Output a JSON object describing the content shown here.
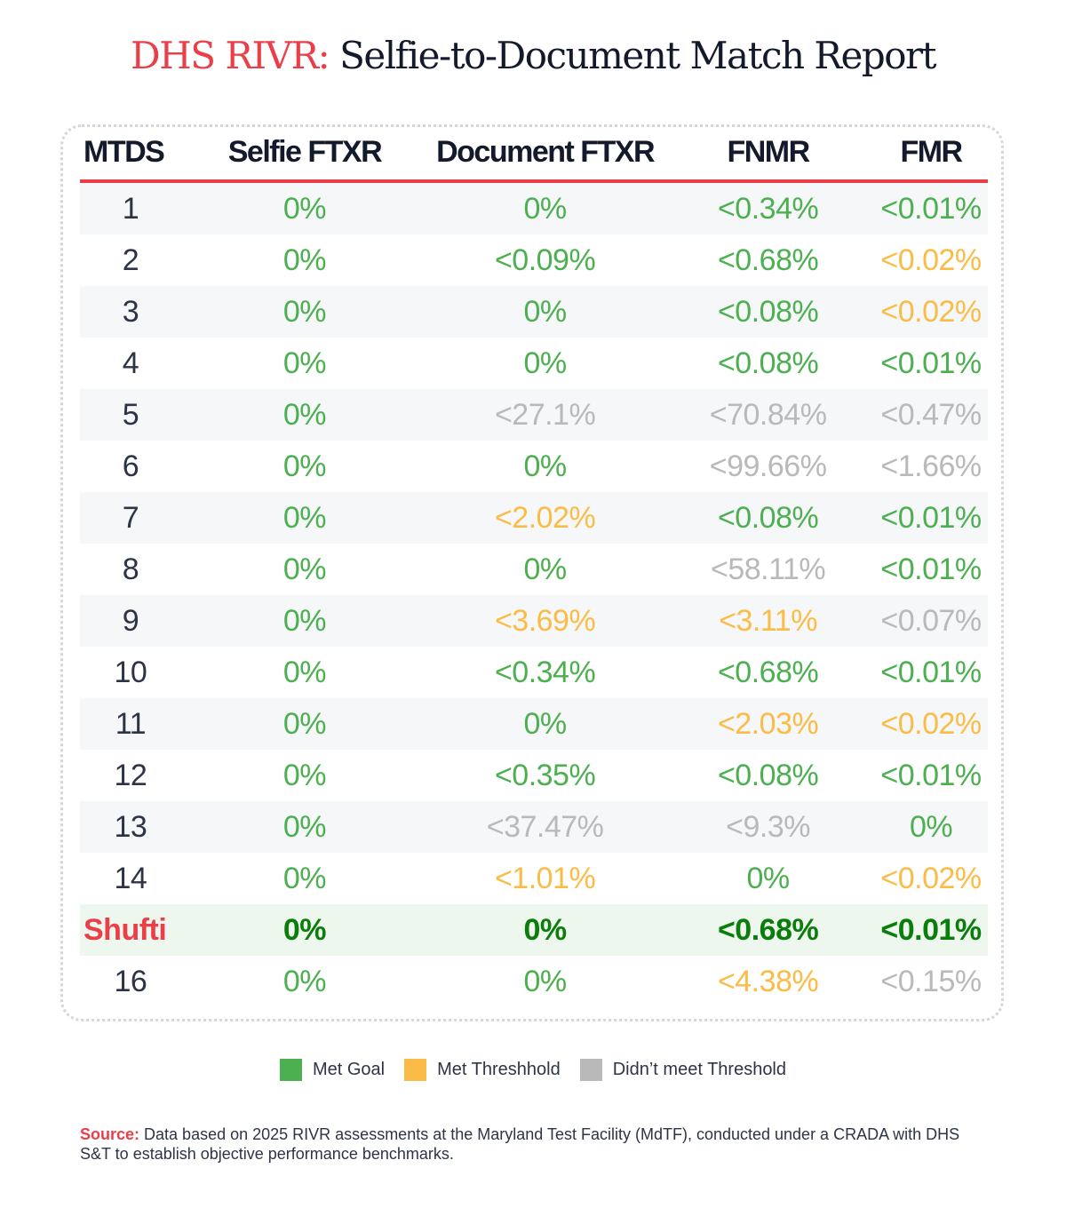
{
  "title": {
    "highlight": "DHS RIVR:",
    "rest": " Selfie-to-Document Match Report"
  },
  "colors": {
    "g": "#4caf50",
    "y": "#fbbc47",
    "x": "#b9b9b9",
    "accent": "#ea3f48",
    "hero_green": "#0b7d0b"
  },
  "chart_data": {
    "type": "table",
    "columns": [
      "MTDS",
      "Selfie FTXR",
      "Document FTXR",
      "FNMR",
      "FMR"
    ],
    "rows": [
      {
        "id": "1",
        "cells": [
          [
            "0%",
            "g"
          ],
          [
            "0%",
            "g"
          ],
          [
            "<0.34%",
            "g"
          ],
          [
            "<0.01%",
            "g"
          ]
        ]
      },
      {
        "id": "2",
        "cells": [
          [
            "0%",
            "g"
          ],
          [
            "<0.09%",
            "g"
          ],
          [
            "<0.68%",
            "g"
          ],
          [
            "<0.02%",
            "y"
          ]
        ]
      },
      {
        "id": "3",
        "cells": [
          [
            "0%",
            "g"
          ],
          [
            "0%",
            "g"
          ],
          [
            "<0.08%",
            "g"
          ],
          [
            "<0.02%",
            "y"
          ]
        ]
      },
      {
        "id": "4",
        "cells": [
          [
            "0%",
            "g"
          ],
          [
            "0%",
            "g"
          ],
          [
            "<0.08%",
            "g"
          ],
          [
            "<0.01%",
            "g"
          ]
        ]
      },
      {
        "id": "5",
        "cells": [
          [
            "0%",
            "g"
          ],
          [
            "<27.1%",
            "x"
          ],
          [
            "<70.84%",
            "x"
          ],
          [
            "<0.47%",
            "x"
          ]
        ]
      },
      {
        "id": "6",
        "cells": [
          [
            "0%",
            "g"
          ],
          [
            "0%",
            "g"
          ],
          [
            "<99.66%",
            "x"
          ],
          [
            "<1.66%",
            "x"
          ]
        ]
      },
      {
        "id": "7",
        "cells": [
          [
            "0%",
            "g"
          ],
          [
            "<2.02%",
            "y"
          ],
          [
            "<0.08%",
            "g"
          ],
          [
            "<0.01%",
            "g"
          ]
        ]
      },
      {
        "id": "8",
        "cells": [
          [
            "0%",
            "g"
          ],
          [
            "0%",
            "g"
          ],
          [
            "<58.11%",
            "x"
          ],
          [
            "<0.01%",
            "g"
          ]
        ]
      },
      {
        "id": "9",
        "cells": [
          [
            "0%",
            "g"
          ],
          [
            "<3.69%",
            "y"
          ],
          [
            "<3.11%",
            "y"
          ],
          [
            "<0.07%",
            "x"
          ]
        ]
      },
      {
        "id": "10",
        "cells": [
          [
            "0%",
            "g"
          ],
          [
            "<0.34%",
            "g"
          ],
          [
            "<0.68%",
            "g"
          ],
          [
            "<0.01%",
            "g"
          ]
        ]
      },
      {
        "id": "11",
        "cells": [
          [
            "0%",
            "g"
          ],
          [
            "0%",
            "g"
          ],
          [
            "<2.03%",
            "y"
          ],
          [
            "<0.02%",
            "y"
          ]
        ]
      },
      {
        "id": "12",
        "cells": [
          [
            "0%",
            "g"
          ],
          [
            "<0.35%",
            "g"
          ],
          [
            "<0.08%",
            "g"
          ],
          [
            "<0.01%",
            "g"
          ]
        ]
      },
      {
        "id": "13",
        "cells": [
          [
            "0%",
            "g"
          ],
          [
            "<37.47%",
            "x"
          ],
          [
            "<9.3%",
            "x"
          ],
          [
            "0%",
            "g"
          ]
        ]
      },
      {
        "id": "14",
        "cells": [
          [
            "0%",
            "g"
          ],
          [
            "<1.01%",
            "y"
          ],
          [
            "0%",
            "g"
          ],
          [
            "<0.02%",
            "y"
          ]
        ]
      },
      {
        "id": "Shufti",
        "highlight": true,
        "cells": [
          [
            "0%",
            "g"
          ],
          [
            "0%",
            "g"
          ],
          [
            "<0.68%",
            "g"
          ],
          [
            "<0.01%",
            "g"
          ]
        ]
      },
      {
        "id": "16",
        "cells": [
          [
            "0%",
            "g"
          ],
          [
            "0%",
            "g"
          ],
          [
            "<4.38%",
            "y"
          ],
          [
            "<0.15%",
            "x"
          ]
        ]
      }
    ],
    "legend": [
      {
        "label": "Met Goal",
        "status": "g"
      },
      {
        "label": "Met Threshhold",
        "status": "y"
      },
      {
        "label": "Didn’t meet Threshold",
        "status": "x"
      }
    ]
  },
  "source": {
    "label": "Source:",
    "text": " Data based on 2025 RIVR assessments at the Maryland Test Facility (MdTF), conducted under a CRADA with DHS S&T to establish objective performance benchmarks."
  }
}
